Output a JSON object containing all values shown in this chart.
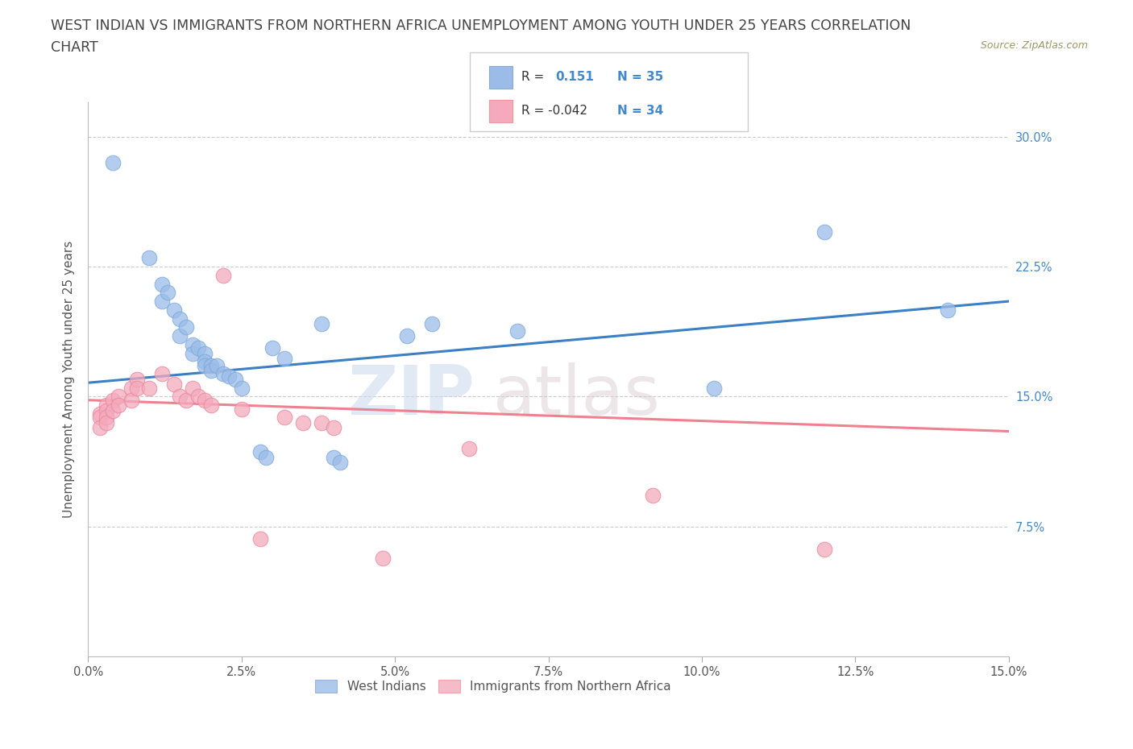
{
  "title_line1": "WEST INDIAN VS IMMIGRANTS FROM NORTHERN AFRICA UNEMPLOYMENT AMONG YOUTH UNDER 25 YEARS CORRELATION",
  "title_line2": "CHART",
  "source_text": "Source: ZipAtlas.com",
  "ylabel": "Unemployment Among Youth under 25 years",
  "xlabel_ticks": [
    "0.0%",
    "2.5%",
    "5.0%",
    "7.5%",
    "10.0%",
    "12.5%",
    "15.0%"
  ],
  "ylabel_ticks_right": [
    "30.0%",
    "22.5%",
    "15.0%",
    "7.5%"
  ],
  "xlim": [
    0.0,
    0.15
  ],
  "ylim": [
    0.0,
    0.32
  ],
  "watermark_line1": "ZIP",
  "watermark_line2": "atlas",
  "blue_color": "#9BBCE8",
  "pink_color": "#F4AABC",
  "blue_line_color": "#3B7FC4",
  "pink_line_color": "#F08090",
  "blue_scatter": [
    [
      0.004,
      0.285
    ],
    [
      0.01,
      0.23
    ],
    [
      0.012,
      0.215
    ],
    [
      0.012,
      0.205
    ],
    [
      0.013,
      0.21
    ],
    [
      0.014,
      0.2
    ],
    [
      0.015,
      0.195
    ],
    [
      0.015,
      0.185
    ],
    [
      0.016,
      0.19
    ],
    [
      0.017,
      0.18
    ],
    [
      0.017,
      0.175
    ],
    [
      0.018,
      0.178
    ],
    [
      0.019,
      0.175
    ],
    [
      0.019,
      0.17
    ],
    [
      0.019,
      0.168
    ],
    [
      0.02,
      0.168
    ],
    [
      0.02,
      0.165
    ],
    [
      0.021,
      0.168
    ],
    [
      0.022,
      0.163
    ],
    [
      0.023,
      0.162
    ],
    [
      0.024,
      0.16
    ],
    [
      0.025,
      0.155
    ],
    [
      0.028,
      0.118
    ],
    [
      0.029,
      0.115
    ],
    [
      0.03,
      0.178
    ],
    [
      0.032,
      0.172
    ],
    [
      0.038,
      0.192
    ],
    [
      0.04,
      0.115
    ],
    [
      0.041,
      0.112
    ],
    [
      0.052,
      0.185
    ],
    [
      0.056,
      0.192
    ],
    [
      0.07,
      0.188
    ],
    [
      0.102,
      0.155
    ],
    [
      0.12,
      0.245
    ],
    [
      0.14,
      0.2
    ]
  ],
  "pink_scatter": [
    [
      0.002,
      0.14
    ],
    [
      0.002,
      0.138
    ],
    [
      0.002,
      0.132
    ],
    [
      0.003,
      0.145
    ],
    [
      0.003,
      0.142
    ],
    [
      0.003,
      0.138
    ],
    [
      0.003,
      0.135
    ],
    [
      0.004,
      0.148
    ],
    [
      0.004,
      0.142
    ],
    [
      0.005,
      0.15
    ],
    [
      0.005,
      0.145
    ],
    [
      0.007,
      0.155
    ],
    [
      0.007,
      0.148
    ],
    [
      0.008,
      0.16
    ],
    [
      0.008,
      0.155
    ],
    [
      0.01,
      0.155
    ],
    [
      0.012,
      0.163
    ],
    [
      0.014,
      0.157
    ],
    [
      0.015,
      0.15
    ],
    [
      0.016,
      0.148
    ],
    [
      0.017,
      0.155
    ],
    [
      0.018,
      0.15
    ],
    [
      0.019,
      0.148
    ],
    [
      0.02,
      0.145
    ],
    [
      0.022,
      0.22
    ],
    [
      0.025,
      0.143
    ],
    [
      0.028,
      0.068
    ],
    [
      0.032,
      0.138
    ],
    [
      0.035,
      0.135
    ],
    [
      0.038,
      0.135
    ],
    [
      0.04,
      0.132
    ],
    [
      0.048,
      0.057
    ],
    [
      0.062,
      0.12
    ],
    [
      0.092,
      0.093
    ]
  ],
  "pink_scatter_outliers": [
    [
      0.12,
      0.062
    ]
  ],
  "blue_trend_x": [
    0.0,
    0.15
  ],
  "blue_trend_y": [
    0.158,
    0.205
  ],
  "pink_trend_x": [
    0.0,
    0.15
  ],
  "pink_trend_y": [
    0.148,
    0.13
  ],
  "title_fontsize": 12.5,
  "axis_label_fontsize": 11,
  "tick_fontsize": 10.5,
  "legend_fontsize": 12
}
